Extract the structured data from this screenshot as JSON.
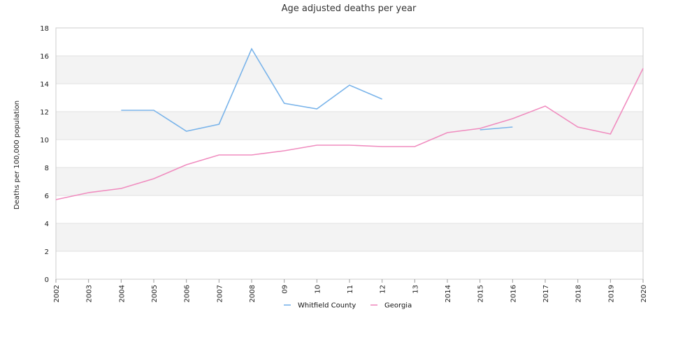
{
  "chart_data": {
    "type": "line",
    "title": "Age adjusted deaths per year",
    "xlabel": "",
    "ylabel": "Deaths per 100,000 population",
    "categories": [
      "2002",
      "2003",
      "2004",
      "2005",
      "2006",
      "2007",
      "2008",
      "09",
      "10",
      "11",
      "12",
      "13",
      "2014",
      "2015",
      "2016",
      "2017",
      "2018",
      "2019",
      "2020"
    ],
    "ylim": [
      0,
      18
    ],
    "yticks": [
      0,
      2,
      4,
      6,
      8,
      10,
      12,
      14,
      16,
      18
    ],
    "grid": "alternating horizontal bands",
    "legend_position": "bottom",
    "series": [
      {
        "name": "Whitfield County",
        "color": "#7ab4ea",
        "values": [
          null,
          null,
          12.1,
          12.1,
          10.6,
          11.1,
          16.5,
          12.6,
          12.2,
          13.9,
          12.9,
          null,
          null,
          10.7,
          10.9,
          null,
          null,
          null,
          null
        ]
      },
      {
        "name": "Georgia",
        "color": "#f08cbf",
        "values": [
          5.7,
          6.2,
          6.5,
          7.2,
          8.2,
          8.9,
          8.9,
          9.2,
          9.6,
          9.6,
          9.5,
          9.5,
          10.5,
          10.8,
          11.5,
          12.4,
          10.9,
          10.4,
          15.1
        ]
      }
    ]
  }
}
